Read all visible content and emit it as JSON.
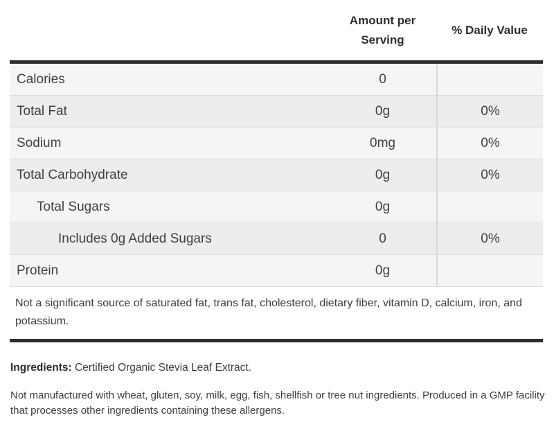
{
  "table": {
    "header": {
      "amount_line1": "Amount per",
      "amount_line2": "Serving",
      "daily_value": "% Daily Value"
    },
    "rows": [
      {
        "label": "Calories",
        "amount": "0",
        "daily": "",
        "indent": 0
      },
      {
        "label": "Total Fat",
        "amount": "0g",
        "daily": "0%",
        "indent": 0
      },
      {
        "label": "Sodium",
        "amount": "0mg",
        "daily": "0%",
        "indent": 0
      },
      {
        "label": "Total Carbohydrate",
        "amount": "0g",
        "daily": "0%",
        "indent": 0
      },
      {
        "label": "Total Sugars",
        "amount": "0g",
        "daily": "",
        "indent": 1
      },
      {
        "label": "Includes 0g Added Sugars",
        "amount": "0",
        "daily": "0%",
        "indent": 2
      },
      {
        "label": "Protein",
        "amount": "0g",
        "daily": "",
        "indent": 0
      }
    ],
    "footnote": "Not a significant source of saturated fat, trans fat, cholesterol, dietary fiber, vitamin D, calcium, iron, and potassium."
  },
  "ingredients": {
    "label": "Ingredients:",
    "text": "Certified Organic Stevia Leaf Extract."
  },
  "allergen_note": "Not manufactured with wheat, gluten, soy, milk, egg, fish, shellfish or tree nut ingredients. Produced in a GMP facility that processes other ingredients containing these allergens.",
  "colors": {
    "thick_rule": "#2e2e2e",
    "row_stripe_light": "#f5f5f5",
    "row_stripe_dark": "#ededed",
    "row_divider": "#dcdcdc",
    "column_divider": "#d8d8d8",
    "text": "#404040"
  }
}
